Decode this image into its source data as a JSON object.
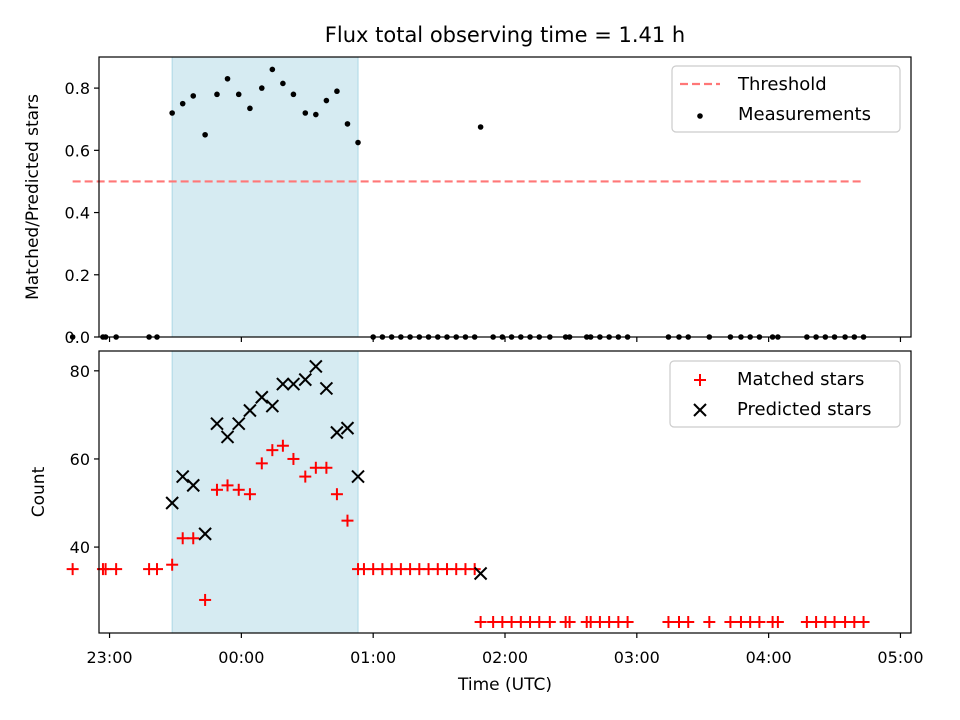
{
  "chart_data": {
    "type": "scatter",
    "title": "Flux total observing time = 1.41 h",
    "xlabel": "Time (UTC)",
    "x_unit": "hours since 00:00 UTC",
    "xlim": [
      -1.08,
      5.08
    ],
    "xticks": [
      {
        "value": -1,
        "label": "23:00"
      },
      {
        "value": 0,
        "label": "00:00"
      },
      {
        "value": 1,
        "label": "01:00"
      },
      {
        "value": 2,
        "label": "02:00"
      },
      {
        "value": 3,
        "label": "03:00"
      },
      {
        "value": 4,
        "label": "04:00"
      },
      {
        "value": 5,
        "label": "05:00"
      }
    ],
    "observing_window": {
      "start": -0.525,
      "end": 0.885
    },
    "top_panel": {
      "ylabel": "Matched/Predicted stars",
      "ylim": [
        0,
        0.9
      ],
      "yticks": [
        {
          "value": 0.0,
          "label": "0.0"
        },
        {
          "value": 0.2,
          "label": "0.2"
        },
        {
          "value": 0.4,
          "label": "0.4"
        },
        {
          "value": 0.6,
          "label": "0.6"
        },
        {
          "value": 0.8,
          "label": "0.8"
        }
      ],
      "threshold": {
        "name": "Threshold",
        "value": 0.5,
        "x_start": -1.28,
        "x_end": 4.72
      },
      "legend": [
        "Threshold",
        "Measurements"
      ],
      "measurements": {
        "name": "Measurements",
        "x": [
          -1.28,
          -1.05,
          -1.03,
          -0.95,
          -0.7,
          -0.64,
          -0.525,
          -0.445,
          -0.365,
          -0.275,
          -0.185,
          -0.105,
          -0.02,
          0.065,
          0.155,
          0.235,
          0.315,
          0.395,
          0.485,
          0.565,
          0.645,
          0.725,
          0.805,
          0.885,
          1.0,
          1.07,
          1.14,
          1.21,
          1.28,
          1.35,
          1.42,
          1.49,
          1.56,
          1.63,
          1.7,
          1.77,
          1.815,
          1.91,
          1.98,
          2.05,
          2.12,
          2.19,
          2.26,
          2.34,
          2.46,
          2.49,
          2.62,
          2.65,
          2.72,
          2.79,
          2.86,
          2.93,
          3.24,
          3.32,
          3.39,
          3.55,
          3.71,
          3.79,
          3.86,
          3.93,
          4.03,
          4.07,
          4.29,
          4.36,
          4.43,
          4.5,
          4.58,
          4.65,
          4.72
        ],
        "y": [
          0,
          0,
          0,
          0,
          0,
          0,
          0.72,
          0.75,
          0.775,
          0.65,
          0.78,
          0.83,
          0.78,
          0.735,
          0.8,
          0.86,
          0.815,
          0.78,
          0.72,
          0.715,
          0.76,
          0.79,
          0.685,
          0.625,
          0,
          0,
          0,
          0,
          0,
          0,
          0,
          0,
          0,
          0,
          0,
          0,
          0.675,
          0,
          0,
          0,
          0,
          0,
          0,
          0,
          0,
          0,
          0,
          0,
          0,
          0,
          0,
          0,
          0,
          0,
          0,
          0,
          0,
          0,
          0,
          0,
          0,
          0,
          0,
          0,
          0,
          0,
          0,
          0,
          0
        ]
      }
    },
    "bottom_panel": {
      "ylabel": "Count",
      "ylim": [
        20.5,
        84.5
      ],
      "yticks": [
        {
          "value": 40,
          "label": "40"
        },
        {
          "value": 60,
          "label": "60"
        },
        {
          "value": 80,
          "label": "80"
        }
      ],
      "legend": [
        "Matched stars",
        "Predicted stars"
      ],
      "series": [
        {
          "name": "Matched stars",
          "marker": "plus",
          "x": [
            -1.28,
            -1.05,
            -1.03,
            -0.95,
            -0.7,
            -0.64,
            -0.525,
            -0.445,
            -0.365,
            -0.275,
            -0.185,
            -0.105,
            -0.02,
            0.065,
            0.155,
            0.235,
            0.315,
            0.395,
            0.485,
            0.565,
            0.645,
            0.725,
            0.805,
            0.885,
            0.93,
            1.0,
            1.07,
            1.14,
            1.21,
            1.28,
            1.35,
            1.42,
            1.49,
            1.56,
            1.63,
            1.7,
            1.77,
            1.815,
            1.91,
            1.98,
            2.05,
            2.12,
            2.19,
            2.26,
            2.34,
            2.46,
            2.49,
            2.62,
            2.65,
            2.72,
            2.79,
            2.86,
            2.93,
            3.24,
            3.32,
            3.39,
            3.55,
            3.71,
            3.79,
            3.86,
            3.93,
            4.03,
            4.07,
            4.29,
            4.36,
            4.43,
            4.5,
            4.58,
            4.65,
            4.72
          ],
          "y": [
            35,
            35,
            35,
            35,
            35,
            35,
            36,
            42,
            42,
            28,
            53,
            54,
            53,
            52,
            59,
            62,
            63,
            60,
            56,
            58,
            58,
            52,
            46,
            35,
            35,
            35,
            35,
            35,
            35,
            35,
            35,
            35,
            35,
            35,
            35,
            35,
            35,
            23,
            23,
            23,
            23,
            23,
            23,
            23,
            23,
            23,
            23,
            23,
            23,
            23,
            23,
            23,
            23,
            23,
            23,
            23,
            23,
            23,
            23,
            23,
            23,
            23,
            23,
            23,
            23,
            23,
            23,
            23,
            23,
            23
          ]
        },
        {
          "name": "Predicted stars",
          "marker": "x",
          "x": [
            -0.525,
            -0.445,
            -0.365,
            -0.275,
            -0.185,
            -0.105,
            -0.02,
            0.065,
            0.155,
            0.235,
            0.315,
            0.395,
            0.485,
            0.565,
            0.645,
            0.725,
            0.805,
            0.885,
            1.815
          ],
          "y": [
            50,
            56,
            54,
            43,
            68,
            65,
            68,
            71,
            74,
            72,
            77,
            77,
            78,
            81,
            76,
            66,
            67,
            56,
            34
          ]
        }
      ]
    }
  }
}
